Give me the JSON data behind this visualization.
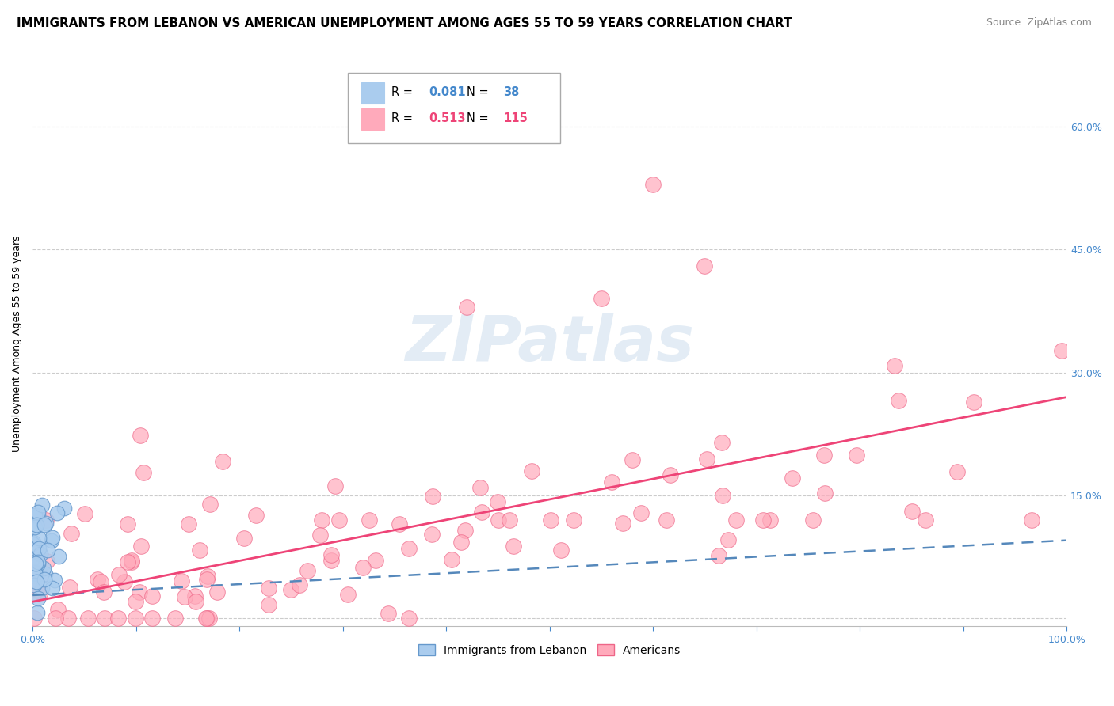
{
  "title": "IMMIGRANTS FROM LEBANON VS AMERICAN UNEMPLOYMENT AMONG AGES 55 TO 59 YEARS CORRELATION CHART",
  "source": "Source: ZipAtlas.com",
  "ylabel": "Unemployment Among Ages 55 to 59 years",
  "xlim": [
    0,
    1.0
  ],
  "ylim": [
    -0.01,
    0.68
  ],
  "xticks": [
    0.0,
    0.1,
    0.2,
    0.3,
    0.4,
    0.5,
    0.6,
    0.7,
    0.8,
    0.9,
    1.0
  ],
  "xticklabels": [
    "0.0%",
    "",
    "",
    "",
    "",
    "",
    "",
    "",
    "",
    "",
    "100.0%"
  ],
  "yticks": [
    0.0,
    0.15,
    0.3,
    0.45,
    0.6
  ],
  "yticklabels": [
    "",
    "15.0%",
    "30.0%",
    "45.0%",
    "60.0%"
  ],
  "grid_color": "#cccccc",
  "bg_color": "#ffffff",
  "series1_color": "#aaccee",
  "series1_edge": "#6699cc",
  "series2_color": "#ffaabb",
  "series2_edge": "#ee6688",
  "line1_color": "#5588bb",
  "line2_color": "#ee4477",
  "legend_label1": "Immigrants from Lebanon",
  "legend_label2": "Americans",
  "watermark": "ZIPatlas",
  "title_fontsize": 11,
  "source_fontsize": 9,
  "label_fontsize": 9,
  "tick_fontsize": 9,
  "axis_color": "#4488cc",
  "legend_R1_val": "0.081",
  "legend_N1_val": "38",
  "legend_R2_val": "0.513",
  "legend_N2_val": "115",
  "leb_trend_x0": 0.0,
  "leb_trend_y0": 0.028,
  "leb_trend_x1": 1.0,
  "leb_trend_y1": 0.095,
  "am_trend_x0": 0.0,
  "am_trend_y0": 0.02,
  "am_trend_x1": 1.0,
  "am_trend_y1": 0.27
}
